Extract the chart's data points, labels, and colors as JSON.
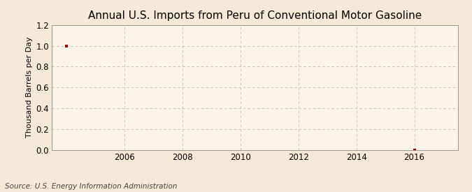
{
  "title": "Annual U.S. Imports from Peru of Conventional Motor Gasoline",
  "ylabel": "Thousand Barrels per Day",
  "source_text": "Source: U.S. Energy Information Administration",
  "data_x": [
    2004,
    2016
  ],
  "data_y": [
    1.0,
    0.0
  ],
  "xlim": [
    2003.5,
    2017.5
  ],
  "ylim": [
    0.0,
    1.2
  ],
  "yticks": [
    0.0,
    0.2,
    0.4,
    0.6,
    0.8,
    1.0,
    1.2
  ],
  "xticks": [
    2006,
    2008,
    2010,
    2012,
    2014,
    2016
  ],
  "background_color": "#f5ead8",
  "plot_bg_color": "#faf5e8",
  "grid_color": "#bbbbbb",
  "marker_color": "#aa0000",
  "title_fontsize": 11,
  "label_fontsize": 8,
  "tick_fontsize": 8.5,
  "source_fontsize": 7.5
}
